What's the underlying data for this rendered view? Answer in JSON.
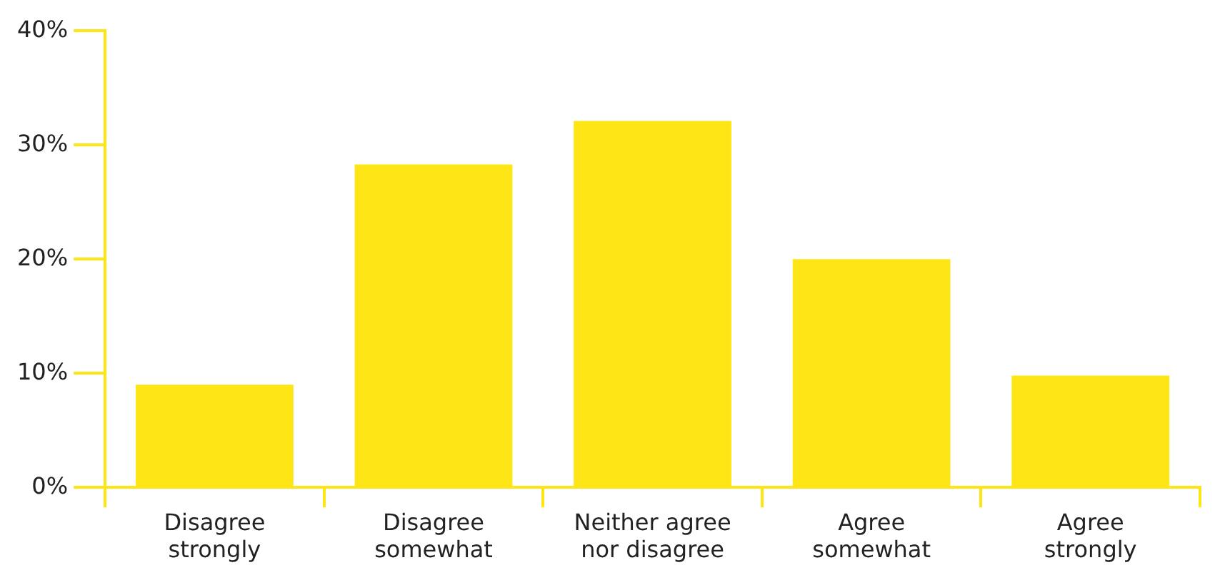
{
  "chart_data": {
    "type": "bar",
    "categories": [
      "Disagree strongly",
      "Disagree somewhat",
      "Neither agree nor disagree",
      "Agree somewhat",
      "Agree strongly"
    ],
    "values": [
      9,
      28.3,
      32.1,
      20,
      9.8
    ],
    "color": "#fde516",
    "ylim": [
      0,
      40
    ],
    "yticks": [
      {
        "value": 0,
        "label": "0%"
      },
      {
        "value": 10,
        "label": "10%"
      },
      {
        "value": 20,
        "label": "20%"
      },
      {
        "value": 30,
        "label": "30%"
      },
      {
        "value": 40,
        "label": "40%"
      }
    ],
    "grid": false,
    "legend": false
  }
}
